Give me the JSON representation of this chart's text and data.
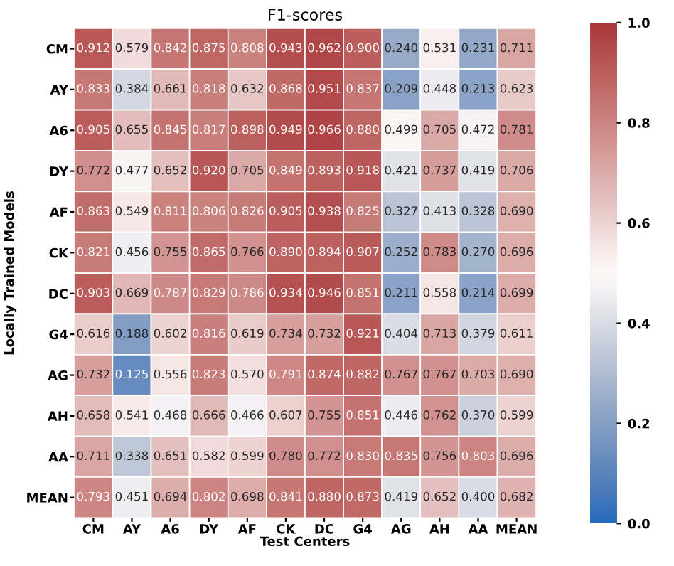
{
  "chart_data": {
    "type": "heatmap",
    "title": "F1-scores",
    "xlabel": "Test Centers",
    "ylabel": "Locally Trained Models",
    "categories": [
      "CM",
      "AY",
      "A6",
      "DY",
      "AF",
      "CK",
      "DC",
      "G4",
      "AG",
      "AH",
      "AA",
      "MEAN"
    ],
    "y_categories": [
      "CM",
      "AY",
      "A6",
      "DY",
      "AF",
      "CK",
      "DC",
      "G4",
      "AG",
      "AH",
      "AA",
      "MEAN"
    ],
    "cells": [
      [
        0.912,
        0.579,
        0.842,
        0.875,
        0.808,
        0.943,
        0.962,
        0.9,
        0.24,
        0.531,
        0.231,
        0.711
      ],
      [
        0.833,
        0.384,
        0.661,
        0.818,
        0.632,
        0.868,
        0.951,
        0.837,
        0.209,
        0.448,
        0.213,
        0.623
      ],
      [
        0.905,
        0.655,
        0.845,
        0.817,
        0.898,
        0.949,
        0.966,
        0.88,
        0.499,
        0.705,
        0.472,
        0.781
      ],
      [
        0.772,
        0.477,
        0.652,
        0.92,
        0.705,
        0.849,
        0.893,
        0.918,
        0.421,
        0.737,
        0.419,
        0.706
      ],
      [
        0.863,
        0.549,
        0.811,
        0.806,
        0.826,
        0.905,
        0.938,
        0.825,
        0.327,
        0.413,
        0.328,
        0.69
      ],
      [
        0.821,
        0.456,
        0.755,
        0.865,
        0.766,
        0.89,
        0.894,
        0.907,
        0.252,
        0.783,
        0.27,
        0.696
      ],
      [
        0.903,
        0.669,
        0.787,
        0.829,
        0.786,
        0.934,
        0.946,
        0.851,
        0.211,
        0.558,
        0.214,
        0.699
      ],
      [
        0.616,
        0.188,
        0.602,
        0.816,
        0.619,
        0.734,
        0.732,
        0.921,
        0.404,
        0.713,
        0.379,
        0.611
      ],
      [
        0.732,
        0.125,
        0.556,
        0.823,
        0.57,
        0.791,
        0.874,
        0.882,
        0.767,
        0.767,
        0.703,
        0.69
      ],
      [
        0.658,
        0.541,
        0.468,
        0.666,
        0.466,
        0.607,
        0.755,
        0.851,
        0.446,
        0.762,
        0.37,
        0.599
      ],
      [
        0.711,
        0.338,
        0.651,
        0.582,
        0.599,
        0.78,
        0.772,
        0.83,
        0.835,
        0.756,
        0.803,
        0.696
      ],
      [
        0.793,
        0.451,
        0.694,
        0.802,
        0.698,
        0.841,
        0.88,
        0.873,
        0.419,
        0.652,
        0.4,
        0.682
      ]
    ],
    "cell_labels": [
      [
        "0.912",
        "0.579",
        "0.842",
        "0.875",
        "0.808",
        "0.943",
        "0.962",
        "0.900",
        "0.240",
        "0.531",
        "0.231",
        "0.711"
      ],
      [
        "0.833",
        "0.384",
        "0.661",
        "0.818",
        "0.632",
        "0.868",
        "0.951",
        "0.837",
        "0.209",
        "0.448",
        "0.213",
        "0.623"
      ],
      [
        "0.905",
        "0.655",
        "0.845",
        "0.817",
        "0.898",
        "0.949",
        "0.966",
        "0.880",
        "0.499",
        "0.705",
        "0.472",
        "0.781"
      ],
      [
        "0.772",
        "0.477",
        "0.652",
        "0.920",
        "0.705",
        "0.849",
        "0.893",
        "0.918",
        "0.421",
        "0.737",
        "0.419",
        "0.706"
      ],
      [
        "0.863",
        "0.549",
        "0.811",
        "0.806",
        "0.826",
        "0.905",
        "0.938",
        "0.825",
        "0.327",
        "0.413",
        "0.328",
        "0.690"
      ],
      [
        "0.821",
        "0.456",
        "0.755",
        "0.865",
        "0.766",
        "0.890",
        "0.894",
        "0.907",
        "0.252",
        "0.783",
        "0.270",
        "0.696"
      ],
      [
        "0.903",
        "0.669",
        "0.787",
        "0.829",
        "0.786",
        "0.934",
        "0.946",
        "0.851",
        "0.211",
        "0.558",
        "0.214",
        "0.699"
      ],
      [
        "0.616",
        "0.188",
        "0.602",
        "0.816",
        "0.619",
        "0.734",
        "0.732",
        "0.921",
        "0.404",
        "0.713",
        "0.379",
        "0.611"
      ],
      [
        "0.732",
        "0.125",
        "0.556",
        "0.823",
        "0.570",
        "0.791",
        "0.874",
        "0.882",
        "0.767",
        "0.767",
        "0.703",
        "0.690"
      ],
      [
        "0.658",
        "0.541",
        "0.468",
        "0.666",
        "0.466",
        "0.607",
        "0.755",
        "0.851",
        "0.446",
        "0.762",
        "0.370",
        "0.599"
      ],
      [
        "0.711",
        "0.338",
        "0.651",
        "0.582",
        "0.599",
        "0.780",
        "0.772",
        "0.830",
        "0.835",
        "0.756",
        "0.803",
        "0.696"
      ],
      [
        "0.793",
        "0.451",
        "0.694",
        "0.802",
        "0.698",
        "0.841",
        "0.880",
        "0.873",
        "0.419",
        "0.652",
        "0.400",
        "0.682"
      ]
    ],
    "data_labels": true,
    "clim": [
      0,
      1
    ],
    "cticks": [
      {
        "value": 0,
        "label": "0.0"
      },
      0.2,
      0.4,
      0.6,
      0.8,
      {
        "value": 1,
        "label": "1.0"
      }
    ]
  }
}
